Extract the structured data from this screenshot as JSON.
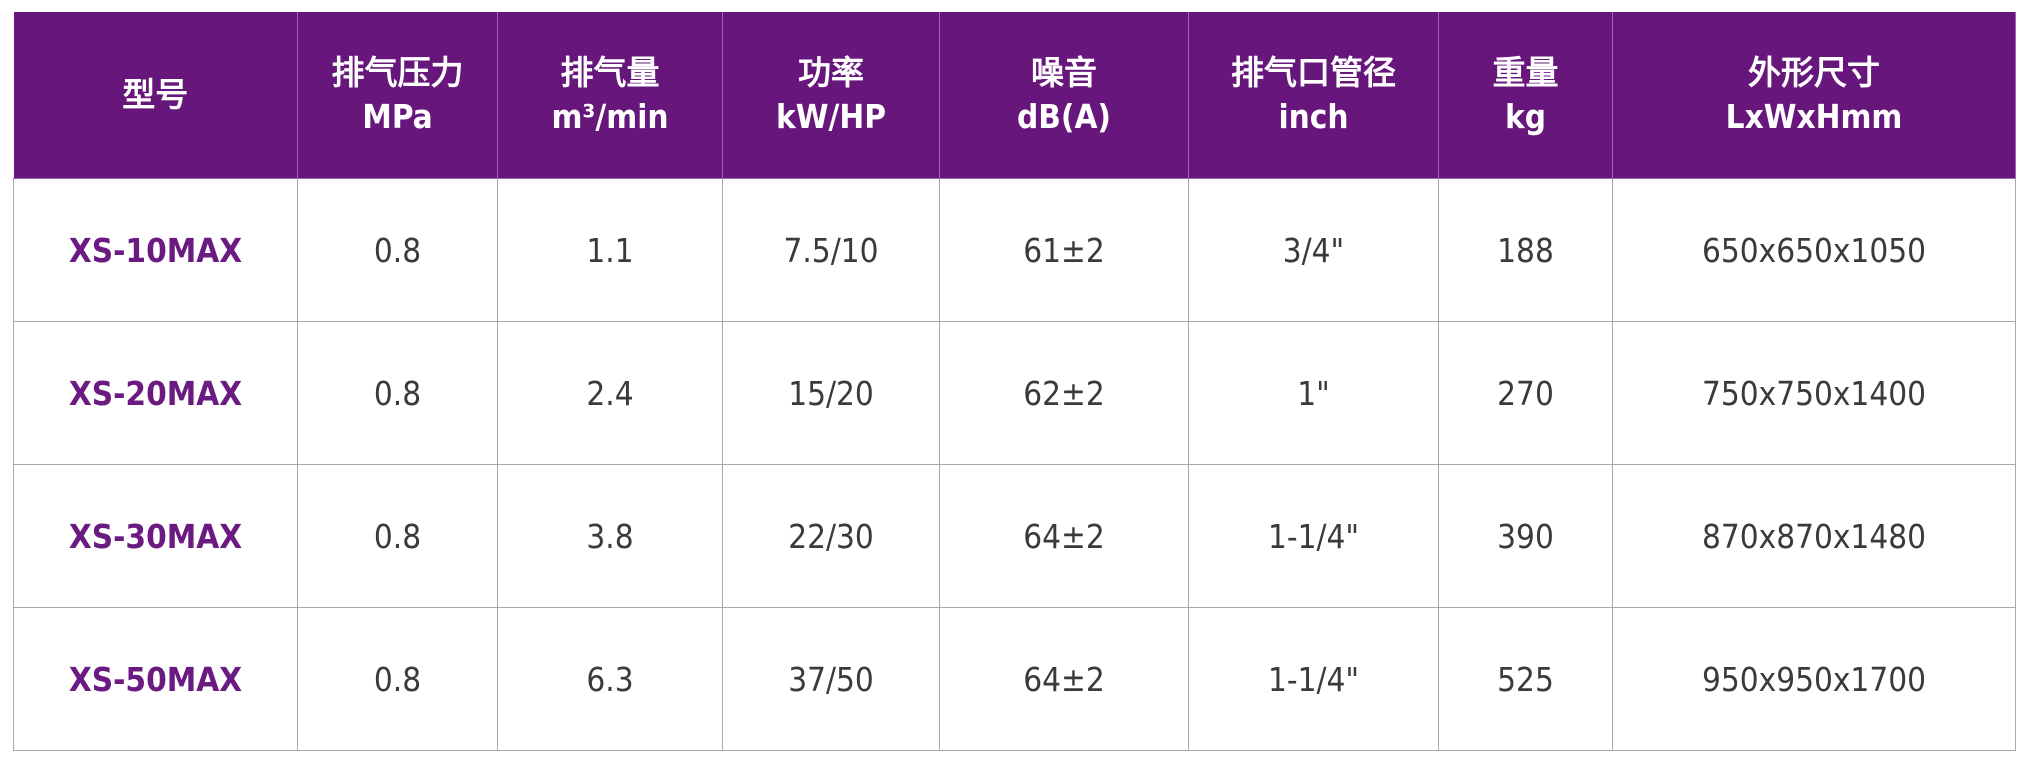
{
  "colors": {
    "header_bg": "#67177b",
    "model_text": "#6a1a80",
    "cell_text": "#3a3a3a"
  },
  "table": {
    "headers": [
      {
        "line1": "型号",
        "line2": ""
      },
      {
        "line1": "排气压力",
        "line2": "MPa"
      },
      {
        "line1": "排气量",
        "line2": "m³/min"
      },
      {
        "line1": "功率",
        "line2": "kW/HP"
      },
      {
        "line1": "噪音",
        "line2": "dB(A)"
      },
      {
        "line1": "排气口管径",
        "line2": "inch"
      },
      {
        "line1": "重量",
        "line2": "kg"
      },
      {
        "line1": "外形尺寸",
        "line2": "LxWxHmm"
      }
    ],
    "rows": [
      [
        "XS-10MAX",
        "0.8",
        "1.1",
        "7.5/10",
        "61±2",
        "3/4\"",
        "188",
        "650x650x1050"
      ],
      [
        "XS-20MAX",
        "0.8",
        "2.4",
        "15/20",
        "62±2",
        "1\"",
        "270",
        "750x750x1400"
      ],
      [
        "XS-30MAX",
        "0.8",
        "3.8",
        "22/30",
        "64±2",
        "1-1/4\"",
        "390",
        "870x870x1480"
      ],
      [
        "XS-50MAX",
        "0.8",
        "6.3",
        "37/50",
        "64±2",
        "1-1/4\"",
        "525",
        "950x950x1700"
      ]
    ]
  }
}
